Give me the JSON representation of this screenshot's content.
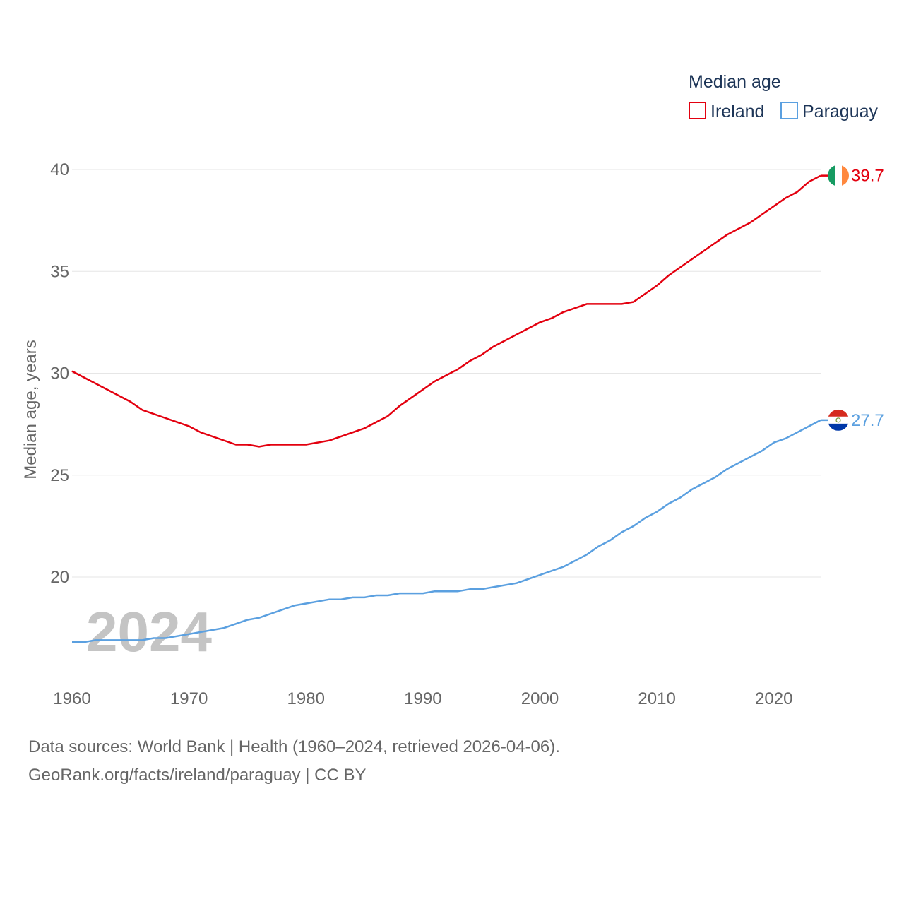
{
  "chart_data": {
    "type": "line",
    "legend": {
      "title": "Median age",
      "placement": "top-right"
    },
    "ylabel": "Median age, years",
    "xlabel": "",
    "xlim": [
      1960,
      2024
    ],
    "ylim": [
      16,
      40
    ],
    "x_ticks": [
      1960,
      1970,
      1980,
      1990,
      2000,
      2010,
      2020
    ],
    "y_ticks": [
      20,
      25,
      30,
      35,
      40
    ],
    "grid": true,
    "year_label": "2024",
    "series": [
      {
        "name": "Ireland",
        "color": "#e3000f",
        "end_label": "39.7",
        "flag_icon": "ireland-flag-icon",
        "x": [
          1960,
          1962,
          1965,
          1966,
          1968,
          1970,
          1971,
          1974,
          1975,
          1976,
          1977,
          1980,
          1982,
          1985,
          1987,
          1988,
          1991,
          1993,
          1994,
          1995,
          1996,
          1998,
          2000,
          2001,
          2002,
          2004,
          2007,
          2008,
          2010,
          2011,
          2013,
          2016,
          2018,
          2020,
          2021,
          2022,
          2023,
          2024
        ],
        "values": [
          30.1,
          29.5,
          28.6,
          28.2,
          27.8,
          27.4,
          27.1,
          26.5,
          26.5,
          26.4,
          26.5,
          26.5,
          26.7,
          27.3,
          27.9,
          28.4,
          29.6,
          30.2,
          30.6,
          30.9,
          31.3,
          31.9,
          32.5,
          32.7,
          33.0,
          33.4,
          33.4,
          33.5,
          34.3,
          34.8,
          35.6,
          36.8,
          37.4,
          38.2,
          38.6,
          38.9,
          39.4,
          39.7
        ]
      },
      {
        "name": "Paraguay",
        "color": "#5ba0e0",
        "end_label": "27.7",
        "flag_icon": "paraguay-flag-icon",
        "x": [
          1960,
          1961,
          1962,
          1964,
          1966,
          1967,
          1968,
          1970,
          1971,
          1973,
          1975,
          1976,
          1978,
          1979,
          1980,
          1982,
          1983,
          1984,
          1985,
          1986,
          1987,
          1988,
          1990,
          1991,
          1993,
          1994,
          1995,
          1996,
          1998,
          2000,
          2002,
          2004,
          2005,
          2006,
          2007,
          2008,
          2009,
          2010,
          2011,
          2012,
          2013,
          2015,
          2016,
          2018,
          2019,
          2020,
          2021,
          2022,
          2023,
          2024
        ],
        "values": [
          16.8,
          16.8,
          16.9,
          16.9,
          16.9,
          17.0,
          17.0,
          17.2,
          17.3,
          17.5,
          17.9,
          18.0,
          18.4,
          18.6,
          18.7,
          18.9,
          18.9,
          19.0,
          19.0,
          19.1,
          19.1,
          19.2,
          19.2,
          19.3,
          19.3,
          19.4,
          19.4,
          19.5,
          19.7,
          20.1,
          20.5,
          21.1,
          21.5,
          21.8,
          22.2,
          22.5,
          22.9,
          23.2,
          23.6,
          23.9,
          24.3,
          24.9,
          25.3,
          25.9,
          26.2,
          26.6,
          26.8,
          27.1,
          27.4,
          27.7
        ]
      }
    ]
  },
  "footer": {
    "sources": "Data sources: World Bank | Health (1960–2024, retrieved 2026-04-06).",
    "credit": "GeoRank.org/facts/ireland/paraguay | CC BY"
  }
}
